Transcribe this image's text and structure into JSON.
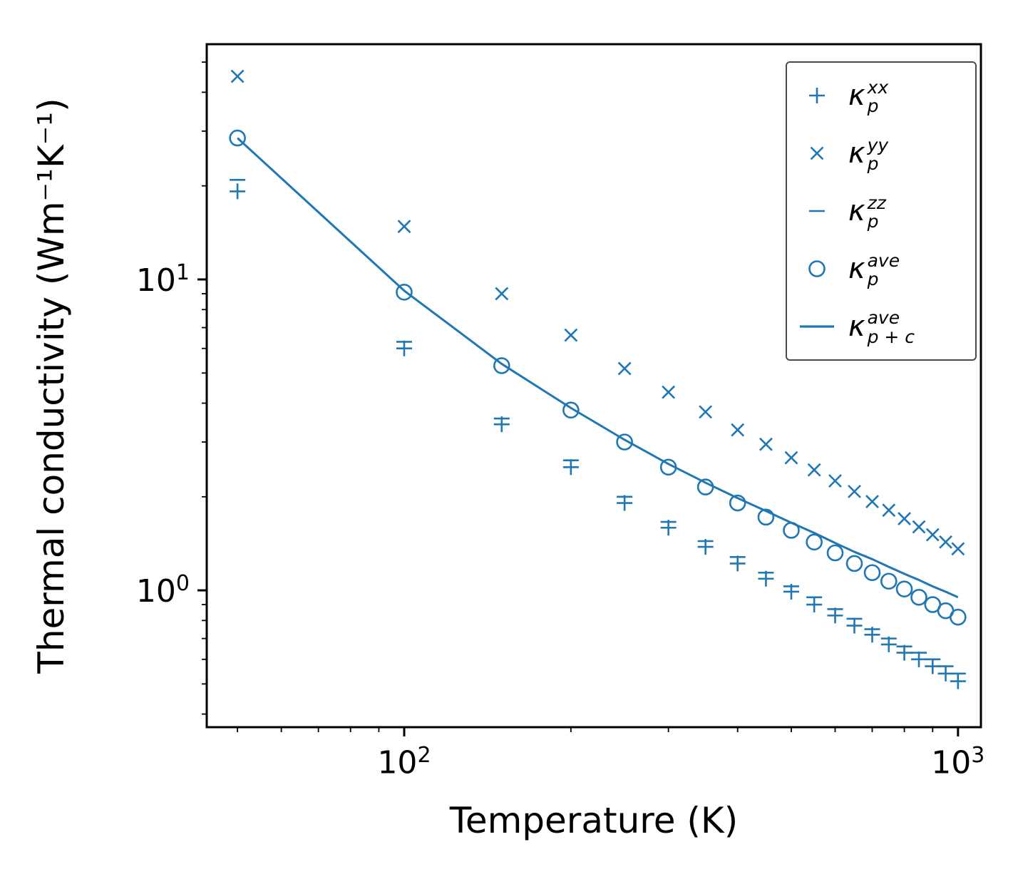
{
  "figure": {
    "background": "#ffffff",
    "accent_color": "#1f77b4",
    "xlabel": "Temperature (K)",
    "ylabel": "Thermal conductivity (Wm⁻¹K⁻¹)"
  },
  "axes": {
    "x": {
      "scale": "log",
      "major_ticks": [
        {
          "value": 100,
          "base": "10",
          "exp": "2"
        },
        {
          "value": 1000,
          "base": "10",
          "exp": "3"
        }
      ]
    },
    "y": {
      "scale": "log",
      "major_ticks": [
        {
          "value": 10,
          "base": "10",
          "exp": "1"
        },
        {
          "value": 1,
          "base": "10",
          "exp": "0"
        }
      ]
    }
  },
  "legend": {
    "position": "upper right",
    "entries": [
      {
        "marker": "plus",
        "symbol": "κ",
        "sup": "xx",
        "sub": "p"
      },
      {
        "marker": "x",
        "symbol": "κ",
        "sup": "yy",
        "sub": "p"
      },
      {
        "marker": "hline",
        "symbol": "κ",
        "sup": "zz",
        "sub": "p"
      },
      {
        "marker": "circle",
        "symbol": "κ",
        "sup": "ave",
        "sub": "p"
      },
      {
        "marker": "line",
        "symbol": "κ",
        "sup": "ave",
        "sub": "p + c"
      }
    ]
  },
  "chart_data": {
    "type": "scatter",
    "title": "",
    "xlabel": "Temperature (K)",
    "ylabel": "Thermal conductivity (Wm⁻¹K⁻¹)",
    "x_scale": "log",
    "y_scale": "log",
    "x_range": [
      44,
      1100
    ],
    "y_range": [
      0.363,
      57.1
    ],
    "grid": false,
    "temperatures": [
      50,
      100,
      150,
      200,
      250,
      300,
      350,
      400,
      450,
      500,
      550,
      600,
      650,
      700,
      750,
      800,
      850,
      900,
      950,
      1000
    ],
    "series": [
      {
        "name": "kappa_p_xx",
        "marker": "plus",
        "values": [
          19.2,
          6.0,
          3.42,
          2.49,
          1.91,
          1.59,
          1.38,
          1.22,
          1.09,
          0.99,
          0.9,
          0.83,
          0.77,
          0.72,
          0.67,
          0.63,
          0.6,
          0.57,
          0.54,
          0.51
        ]
      },
      {
        "name": "kappa_p_yy",
        "marker": "x",
        "values": [
          45.0,
          14.8,
          9.0,
          6.62,
          5.17,
          4.34,
          3.75,
          3.28,
          2.95,
          2.67,
          2.44,
          2.25,
          2.08,
          1.93,
          1.81,
          1.7,
          1.6,
          1.51,
          1.43,
          1.36
        ]
      },
      {
        "name": "kappa_p_zz",
        "marker": "hline",
        "values": [
          20.9,
          6.3,
          3.57,
          2.62,
          2.0,
          1.66,
          1.44,
          1.28,
          1.14,
          1.03,
          0.95,
          0.87,
          0.81,
          0.75,
          0.7,
          0.66,
          0.63,
          0.6,
          0.57,
          0.54
        ]
      },
      {
        "name": "kappa_p_ave",
        "marker": "circle",
        "values": [
          28.5,
          9.1,
          5.28,
          3.8,
          3.0,
          2.49,
          2.15,
          1.91,
          1.72,
          1.56,
          1.43,
          1.32,
          1.22,
          1.14,
          1.07,
          1.01,
          0.95,
          0.9,
          0.86,
          0.82
        ]
      },
      {
        "name": "kappa_p_plus_c_ave",
        "marker": "line",
        "values": [
          28.5,
          9.2,
          5.35,
          3.86,
          3.05,
          2.55,
          2.22,
          1.98,
          1.8,
          1.65,
          1.53,
          1.42,
          1.33,
          1.26,
          1.19,
          1.13,
          1.08,
          1.03,
          0.99,
          0.95
        ]
      }
    ]
  }
}
